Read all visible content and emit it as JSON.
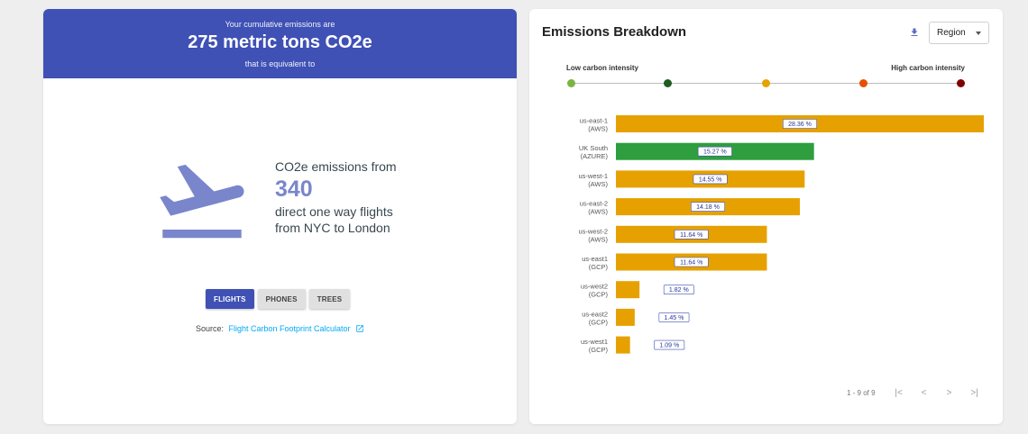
{
  "equivalency": {
    "pre_text": "Your cumulative emissions are",
    "emissions": "275 metric tons CO2e",
    "post_text": "that is equivalent to",
    "line1": "CO2e emissions from",
    "value": "340",
    "line2": "direct one way flights",
    "line3": "from NYC to London",
    "icon": "flight-takeoff-icon",
    "tabs": [
      {
        "label": "FLIGHTS",
        "active": true
      },
      {
        "label": "PHONES",
        "active": false
      },
      {
        "label": "TREES",
        "active": false
      }
    ],
    "source_label": "Source:",
    "source_link": "Flight Carbon Footprint Calculator",
    "header_color": "#3f51b5",
    "accent_color": "#7986cb"
  },
  "breakdown": {
    "title": "Emissions Breakdown",
    "select_value": "Region",
    "legend_low": "Low carbon intensity",
    "legend_high": "High carbon intensity",
    "intensity_colors": [
      "#7cb342",
      "#1b5e20",
      "#e6a100",
      "#e65100",
      "#7f0000"
    ],
    "pagination": "1 - 9 of 9"
  },
  "chart_data": {
    "type": "bar",
    "orientation": "horizontal",
    "categories": [
      [
        "us-east-1",
        "(AWS)"
      ],
      [
        "UK South",
        "(AZURE)"
      ],
      [
        "us-west-1",
        "(AWS)"
      ],
      [
        "us-east-2",
        "(AWS)"
      ],
      [
        "us-west-2",
        "(AWS)"
      ],
      [
        "us-east1",
        "(GCP)"
      ],
      [
        "us-west2",
        "(GCP)"
      ],
      [
        "us-east2",
        "(GCP)"
      ],
      [
        "us-west1",
        "(GCP)"
      ]
    ],
    "values": [
      28.36,
      15.27,
      14.55,
      14.18,
      11.64,
      11.64,
      1.82,
      1.45,
      1.09
    ],
    "labels": [
      "28.36 %",
      "15.27 %",
      "14.55 %",
      "14.18 %",
      "11.64 %",
      "11.64 %",
      "1.82 %",
      "1.45 %",
      "1.09 %"
    ],
    "colors": [
      "#e6a100",
      "#2e9e3e",
      "#e6a100",
      "#e6a100",
      "#e6a100",
      "#e6a100",
      "#e6a100",
      "#e6a100",
      "#e6a100"
    ],
    "xlim": [
      0,
      28.36
    ],
    "grid": false,
    "legend": "top"
  }
}
